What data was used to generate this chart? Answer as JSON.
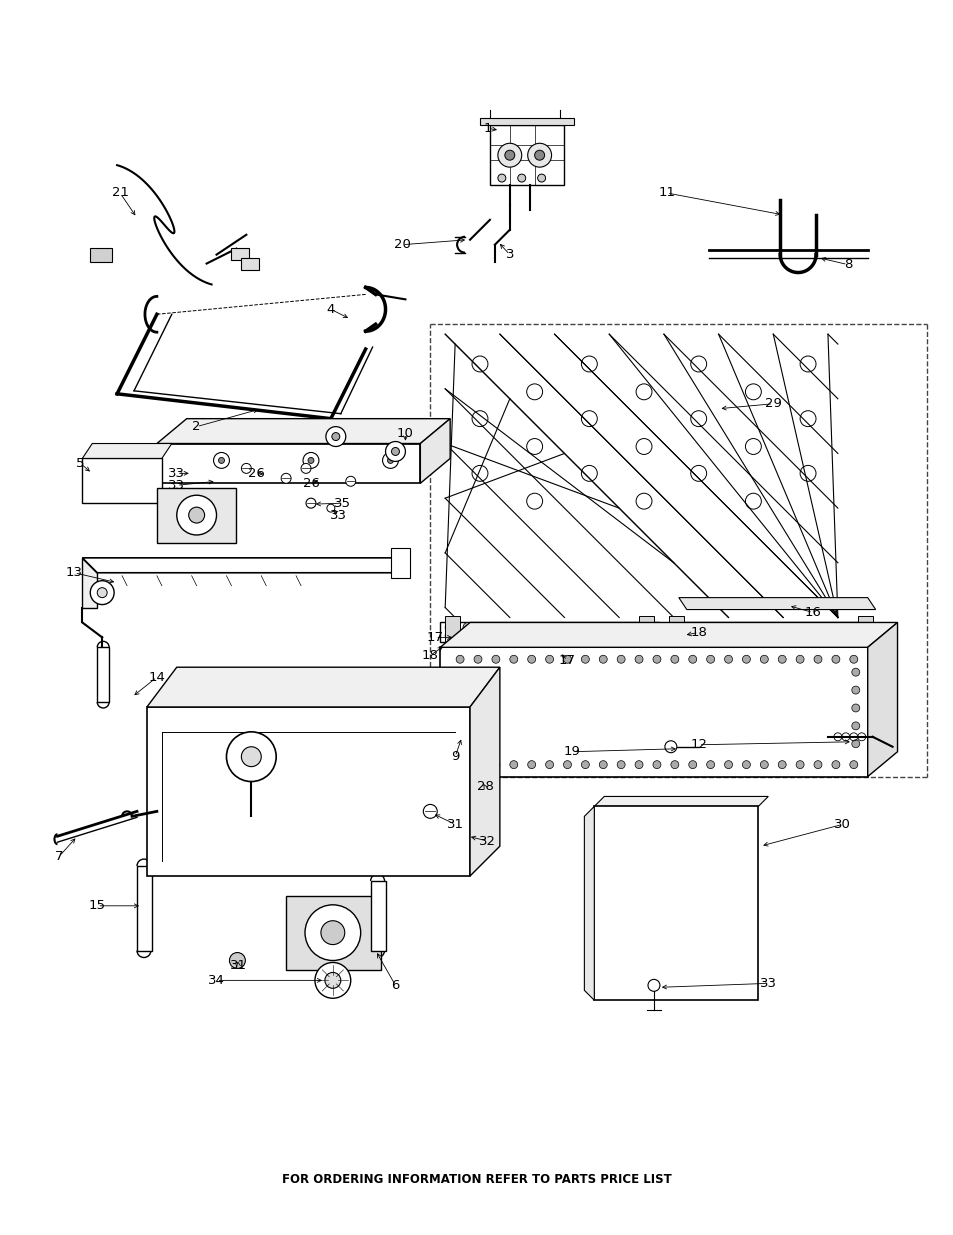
{
  "footer_text": "FOR ORDERING INFORMATION REFER TO PARTS PRICE LIST",
  "background_color": "#ffffff",
  "line_color": "#000000",
  "figsize": [
    9.54,
    12.35
  ],
  "dpi": 100
}
